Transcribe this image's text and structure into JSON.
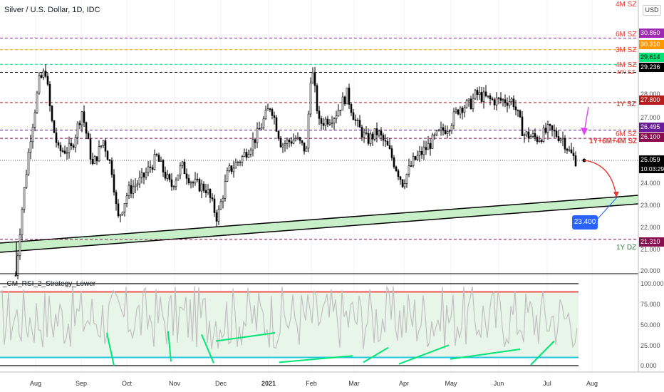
{
  "header": {
    "title": "Silver / U.S. Dollar, 1D, IDC"
  },
  "currency_badge": "USD",
  "indicator_title": "_CM_RSI_2_Strategy_Lower",
  "axis": {
    "price_ticks": [
      "28.000",
      "27.000",
      "24.000",
      "23.000",
      "22.000",
      "21.000",
      "20.000"
    ],
    "rsi_ticks": [
      "100.000",
      "75.000",
      "50.000",
      "25.000",
      "0.000"
    ],
    "x_ticks": [
      "Aug",
      "Sep",
      "Oct",
      "Nov",
      "Dec",
      "2021",
      "Feb",
      "Mar",
      "Apr",
      "May",
      "Jun",
      "Jul",
      "Aug"
    ]
  },
  "levels": [
    {
      "value": "30.860",
      "zone": "6M SZ",
      "line_color": "#8e24aa",
      "tag_color": "#9c27b0",
      "zone_color": "#e53935"
    },
    {
      "value": "30.310",
      "zone": "3M SZ",
      "line_color": "#ff9800",
      "tag_color": "#ff9800",
      "zone_color": "#e53935"
    },
    {
      "value": "29.614",
      "zone": "",
      "line_color": "#00e676",
      "tag_color": "#00e676",
      "zone_color": "#e53935"
    },
    {
      "value": "29.236",
      "zone": "4M SZ",
      "line_color": "#000000",
      "tag_color": "#000000",
      "zone_color": "#e53935"
    },
    {
      "value": "27.800",
      "zone": "1Y SZ",
      "line_color": "#b71c1c",
      "tag_color": "#b71c1c",
      "zone_color": "#b71c1c"
    },
    {
      "value": "26.495",
      "zone": "",
      "line_color": "#6a1b9a",
      "tag_color": "#6a1b9a",
      "zone_color": "#6a1b9a"
    },
    {
      "value": "26.100",
      "zone": "6M SZ",
      "line_color": "#880e4f",
      "tag_color": "#880e4f",
      "zone_color": "#e53935"
    },
    {
      "value": "21.310",
      "zone": "1Y DZ",
      "line_color": "#880e4f",
      "tag_color": "#880e4f",
      "zone_color": "#2e7d32"
    }
  ],
  "extra_zone_labels": {
    "top": "4M SZ",
    "mn": "MN SZ",
    "combo": "1Y+6M+4M SZ"
  },
  "current_price": {
    "value": "25.059",
    "countdown": "10:03:29"
  },
  "target_label": "23.400",
  "colors": {
    "up_candle": "#000000",
    "channel_fill": "#c8f0c8",
    "rsi_line": "#c0c0c0",
    "rsi_bg": "#e8f5e9",
    "rsi_upper": "#ef5350",
    "rsi_lower": "#26c6da",
    "rsi_signal": "#00e676"
  }
}
